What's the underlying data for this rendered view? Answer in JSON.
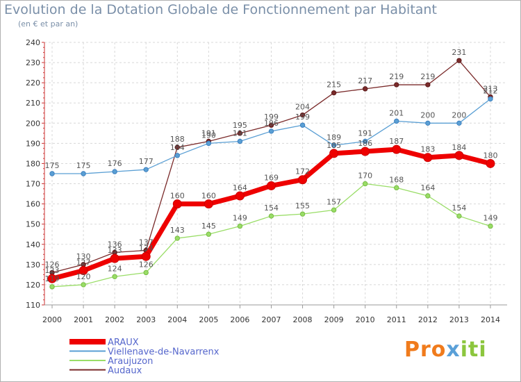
{
  "header": {
    "title": "Evolution de la Dotation Globale de Fonctionnement par Habitant",
    "subtitle": "(en € et par an)"
  },
  "logo": {
    "part1": "Pro",
    "part2": "x",
    "part3": "iti"
  },
  "chart_data": {
    "type": "line",
    "x": [
      "2000",
      "2001",
      "2002",
      "2003",
      "2004",
      "2005",
      "2006",
      "2007",
      "2008",
      "2009",
      "2010",
      "2011",
      "2012",
      "2013",
      "2014"
    ],
    "ylim": [
      110,
      240
    ],
    "ytick_step": 10,
    "grid": true,
    "legend_position": "bottom-left",
    "series": [
      {
        "name": "ARAUX",
        "color": "#ee0000",
        "point_color": "#cc0000",
        "values": [
          123,
          127,
          133,
          134,
          160,
          160,
          164,
          169,
          172,
          185,
          186,
          187,
          183,
          184,
          180
        ]
      },
      {
        "name": "Viellenave-de-Navarrenx",
        "color": "#5a9fd4",
        "point_color": "#3c7fbf",
        "values": [
          175,
          175,
          176,
          177,
          184,
          190,
          191,
          196,
          199,
          189,
          191,
          201,
          200,
          200,
          212
        ]
      },
      {
        "name": "Araujuzon",
        "color": "#99dd66",
        "point_color": "#77bb44",
        "values": [
          119,
          120,
          124,
          126,
          143,
          145,
          149,
          154,
          155,
          157,
          170,
          168,
          164,
          154,
          149
        ]
      },
      {
        "name": "Audaux",
        "color": "#7a2a2a",
        "point_color": "#5a1a1a",
        "values": [
          126,
          130,
          136,
          137,
          188,
          191,
          195,
          199,
          204,
          215,
          217,
          219,
          219,
          231,
          213
        ]
      }
    ]
  }
}
